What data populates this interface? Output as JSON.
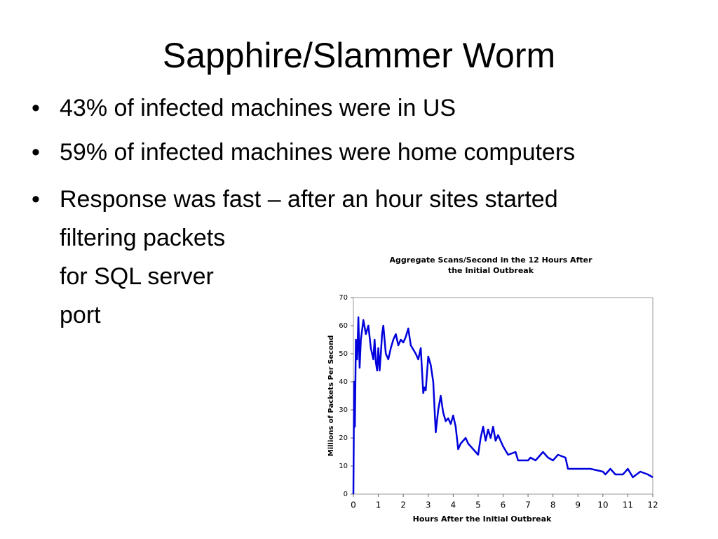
{
  "slide": {
    "title": "Sapphire/Slammer Worm",
    "bullets": [
      [
        "43% of infected machines were in US"
      ],
      [
        "59% of infected machines were home computers"
      ],
      [
        "Response was fast – after an hour sites started",
        "filtering packets",
        "for SQL server",
        "port"
      ]
    ]
  },
  "chart_data": {
    "type": "line",
    "title": "Aggregate Scans/Second in the 12 Hours After the Initial Outbreak",
    "x_label": "Hours After the Initial Outbreak",
    "y_label": "Millions of Packets Per Second",
    "x": [
      0,
      0.03,
      0.06,
      0.1,
      0.15,
      0.2,
      0.25,
      0.3,
      0.4,
      0.5,
      0.6,
      0.7,
      0.8,
      0.85,
      0.9,
      0.95,
      1.0,
      1.05,
      1.1,
      1.15,
      1.2,
      1.3,
      1.4,
      1.5,
      1.6,
      1.7,
      1.8,
      1.9,
      2.0,
      2.1,
      2.2,
      2.3,
      2.5,
      2.6,
      2.7,
      2.8,
      2.85,
      2.9,
      3.0,
      3.1,
      3.2,
      3.3,
      3.4,
      3.5,
      3.6,
      3.7,
      3.8,
      3.9,
      4.0,
      4.1,
      4.2,
      4.3,
      4.5,
      4.6,
      4.8,
      5.0,
      5.1,
      5.2,
      5.3,
      5.4,
      5.5,
      5.6,
      5.7,
      5.8,
      6.0,
      6.2,
      6.5,
      6.6,
      7.0,
      7.1,
      7.3,
      7.6,
      7.8,
      8.0,
      8.2,
      8.5,
      8.6,
      9.0,
      9.5,
      10.0,
      10.1,
      10.3,
      10.5,
      10.8,
      11.0,
      11.2,
      11.5,
      11.8,
      12
    ],
    "series": [
      {
        "color": "#0000dd",
        "values": [
          0,
          40,
          24,
          55,
          48,
          63,
          45,
          55,
          62,
          57,
          60,
          52,
          48,
          55,
          47,
          44,
          52,
          44,
          50,
          57,
          60,
          50,
          48,
          52,
          55,
          57,
          53,
          55,
          54,
          56,
          59,
          53,
          50,
          48,
          52,
          36,
          38,
          37,
          49,
          46,
          40,
          22,
          30,
          35,
          29,
          26,
          27,
          25,
          28,
          24,
          16,
          18,
          20,
          18,
          16,
          14,
          20,
          24,
          19,
          23,
          20,
          24,
          19,
          21,
          17,
          14,
          15,
          12,
          12,
          13,
          12,
          15,
          13,
          12,
          14,
          13,
          9,
          9,
          9,
          8,
          7,
          9,
          7,
          7,
          9,
          6,
          8,
          7,
          6
        ]
      }
    ],
    "xlim": [
      0,
      12
    ],
    "xticks": [
      0,
      1,
      2,
      3,
      4,
      5,
      6,
      7,
      8,
      9,
      10,
      11,
      12
    ],
    "ylim": [
      0,
      70
    ],
    "yticks": [
      0,
      10,
      20,
      30,
      40,
      50,
      60,
      70
    ]
  }
}
